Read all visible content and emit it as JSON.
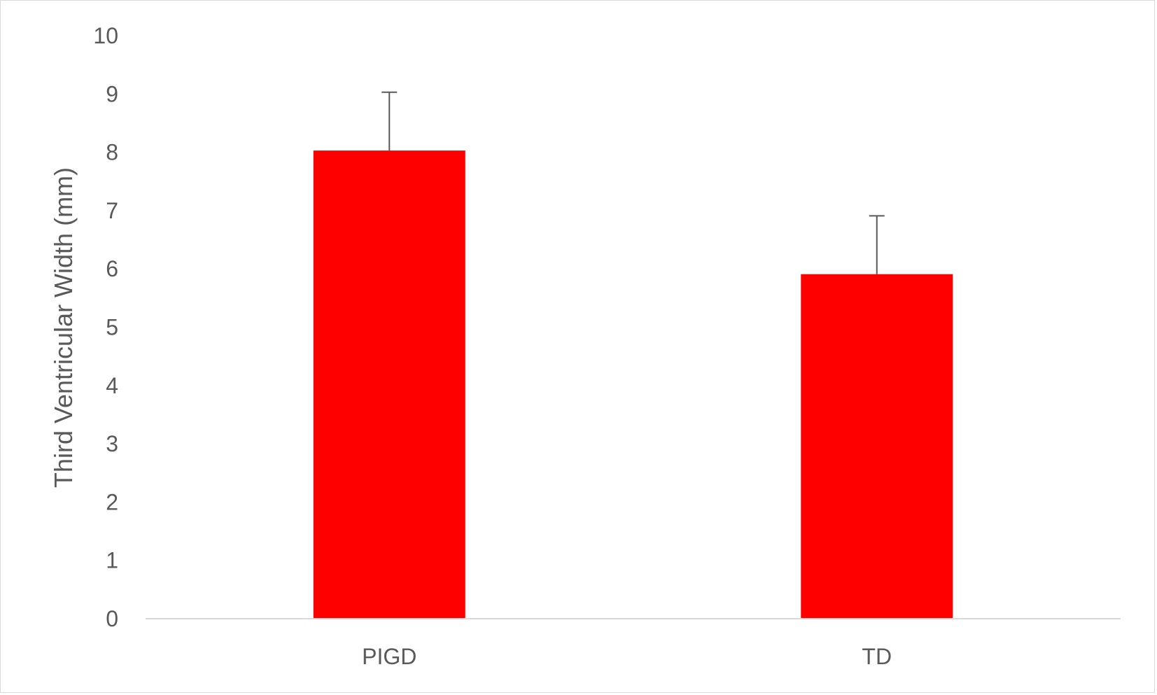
{
  "chart_data": {
    "type": "bar",
    "title": "",
    "xlabel": "",
    "ylabel": "Third Ventricular Width (mm)",
    "categories": [
      "PIGD",
      "TD"
    ],
    "values": [
      8.03,
      5.91
    ],
    "error_bars": [
      1.0,
      1.0
    ],
    "ylim": [
      0,
      10
    ],
    "yticks": [
      "0",
      "1",
      "2",
      "3",
      "4",
      "5",
      "6",
      "7",
      "8",
      "9",
      "10"
    ],
    "grid": false,
    "legend": "none",
    "bar_color": "#ff0000",
    "error_bar_color": "#595959",
    "axis_color": "#d9d9d9"
  }
}
